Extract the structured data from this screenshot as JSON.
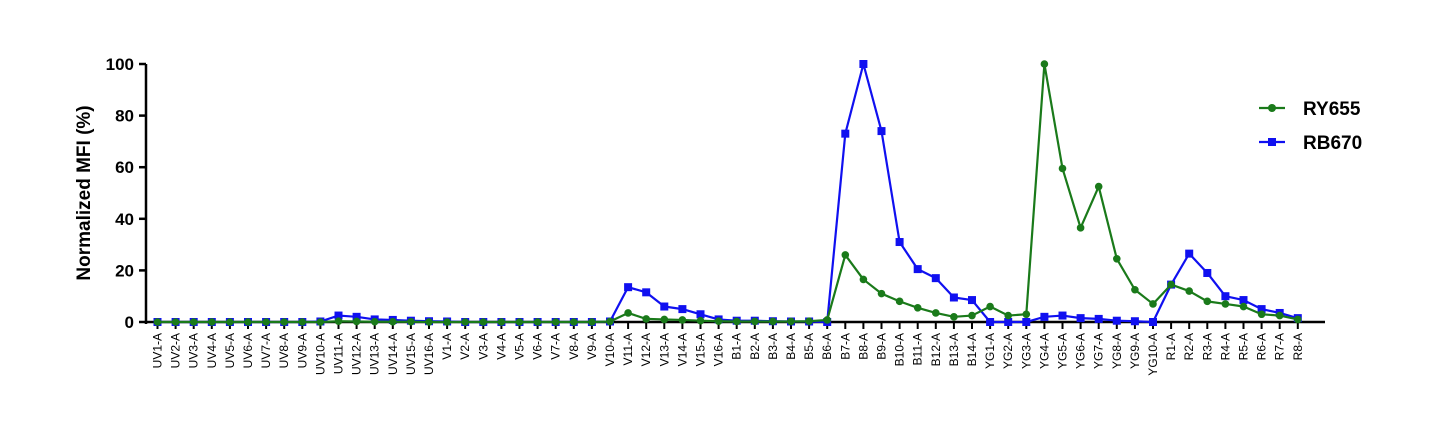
{
  "chart_data": {
    "type": "line",
    "title": "",
    "xlabel": "",
    "ylabel": "Normalized MFI (%)",
    "ylim": [
      0,
      100
    ],
    "yticks": [
      0,
      20,
      40,
      60,
      80,
      100
    ],
    "grid": false,
    "legend_position": "top-right",
    "categories": [
      "UV1-A",
      "UV2-A",
      "UV3-A",
      "UV4-A",
      "UV5-A",
      "UV6-A",
      "UV7-A",
      "UV8-A",
      "UV9-A",
      "UV10-A",
      "UV11-A",
      "UV12-A",
      "UV13-A",
      "UV14-A",
      "UV15-A",
      "UV16-A",
      "V1-A",
      "V2-A",
      "V3-A",
      "V4-A",
      "V5-A",
      "V6-A",
      "V7-A",
      "V8-A",
      "V9-A",
      "V10-A",
      "V11-A",
      "V12-A",
      "V13-A",
      "V14-A",
      "V15-A",
      "V16-A",
      "B1-A",
      "B2-A",
      "B3-A",
      "B4-A",
      "B5-A",
      "B6-A",
      "B7-A",
      "B8-A",
      "B9-A",
      "B10-A",
      "B11-A",
      "B12-A",
      "B13-A",
      "B14-A",
      "YG1-A",
      "YG2-A",
      "YG3-A",
      "YG4-A",
      "YG5-A",
      "YG6-A",
      "YG7-A",
      "YG8-A",
      "YG9-A",
      "YG10-A",
      "R1-A",
      "R2-A",
      "R3-A",
      "R4-A",
      "R5-A",
      "R6-A",
      "R7-A",
      "R8-A"
    ],
    "series": [
      {
        "name": "RY655",
        "color": "#1a7a1a",
        "marker": "circle",
        "values": [
          0,
          0,
          0,
          0,
          0,
          0,
          0,
          0,
          0,
          0,
          0.3,
          0.2,
          0.1,
          0.1,
          0.1,
          0,
          0,
          0,
          0,
          0,
          0,
          0,
          0,
          0,
          0,
          0.2,
          3.5,
          1.2,
          1,
          0.8,
          0.5,
          0.3,
          0.2,
          0.2,
          0.2,
          0.2,
          0.3,
          0.8,
          26,
          16.5,
          11,
          8,
          5.5,
          3.5,
          2,
          2.5,
          6,
          2.5,
          3,
          100,
          59.5,
          36.5,
          52.5,
          24.5,
          12.5,
          7,
          14.5,
          12,
          8,
          7,
          6,
          3,
          2.5,
          1
        ]
      },
      {
        "name": "RB670",
        "color": "#1010f0",
        "marker": "square",
        "values": [
          0,
          0,
          0,
          0,
          0,
          0,
          0,
          0,
          0,
          0.2,
          2.5,
          2,
          1,
          0.8,
          0.5,
          0.3,
          0.2,
          0,
          0,
          0,
          0,
          0,
          0,
          0,
          0,
          0.2,
          13.5,
          11.5,
          6,
          5,
          3,
          1,
          0.5,
          0.5,
          0.3,
          0.2,
          0.2,
          0,
          73,
          100,
          74,
          31,
          20.5,
          17,
          9.5,
          8.5,
          0,
          0,
          0,
          2,
          2.5,
          1.5,
          1.2,
          0.5,
          0.3,
          0,
          14.5,
          26.5,
          19,
          10,
          8.5,
          5,
          3.5,
          1.5
        ]
      }
    ]
  }
}
